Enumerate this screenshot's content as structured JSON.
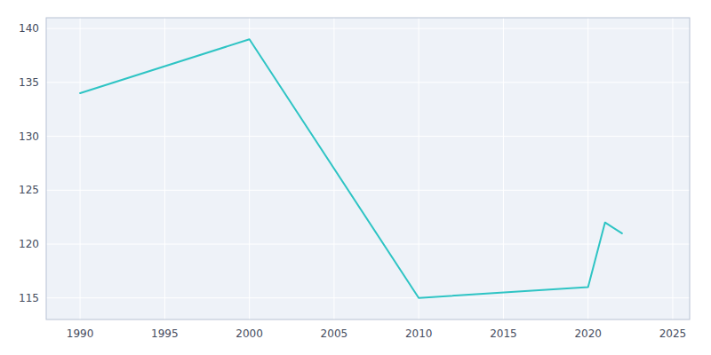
{
  "chart_data": {
    "type": "line",
    "x": [
      1990,
      2000,
      2010,
      2020,
      2021,
      2022
    ],
    "values": [
      134,
      139,
      115,
      116,
      122,
      121
    ],
    "color": "#2EC4C4",
    "xlim": [
      1988,
      2026
    ],
    "ylim": [
      113,
      141
    ],
    "xticks": [
      1990,
      1995,
      2000,
      2005,
      2010,
      2015,
      2020,
      2025
    ],
    "yticks": [
      115,
      120,
      125,
      130,
      135,
      140
    ],
    "grid": true
  }
}
